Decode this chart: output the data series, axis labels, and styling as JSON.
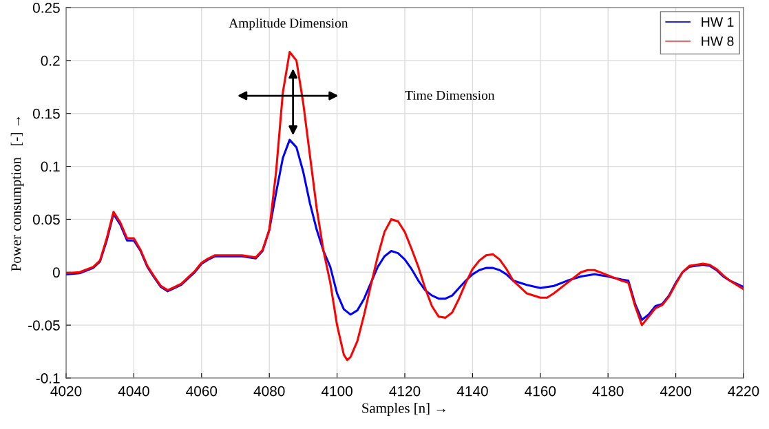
{
  "chart_data": {
    "type": "line",
    "xlabel": "Samples [n] →",
    "ylabel": "Power consumption   [-] →",
    "annotations": [
      "Amplitude Dimension",
      "Time Dimension"
    ],
    "xlim": [
      4020,
      4220
    ],
    "xticks": [
      4020,
      4040,
      4060,
      4080,
      4100,
      4120,
      4140,
      4160,
      4180,
      4200,
      4220
    ],
    "ylim": [
      -0.1,
      0.25
    ],
    "yticks": [
      -0.1,
      -0.05,
      0,
      0.05,
      0.1,
      0.15,
      0.2,
      0.25
    ],
    "grid": true,
    "legend": "top right",
    "marker": "none",
    "line_style": "solid",
    "series": [
      {
        "name": "HW 1",
        "color": "#0000ff",
        "x": [
          4020,
          4024,
          4028,
          4030,
          4032,
          4034,
          4036,
          4038,
          4040,
          4042,
          4044,
          4046,
          4048,
          4050,
          4052,
          4054,
          4056,
          4058,
          4060,
          4062,
          4064,
          4068,
          4072,
          4074,
          4076,
          4078,
          4080,
          4082,
          4084,
          4086,
          4088,
          4090,
          4092,
          4094,
          4096,
          4098,
          4100,
          4102,
          4104,
          4106,
          4108,
          4110,
          4112,
          4114,
          4116,
          4118,
          4120,
          4122,
          4124,
          4126,
          4128,
          4130,
          4132,
          4134,
          4136,
          4138,
          4140,
          4142,
          4144,
          4146,
          4148,
          4150,
          4152,
          4156,
          4160,
          4164,
          4168,
          4172,
          4176,
          4180,
          4184,
          4186,
          4188,
          4190,
          4192,
          4194,
          4196,
          4198,
          4200,
          4202,
          4204,
          4206,
          4208,
          4210,
          4212,
          4214,
          4216,
          4220
        ],
        "values": [
          -0.002,
          -0.001,
          0.004,
          0.01,
          0.03,
          0.055,
          0.045,
          0.03,
          0.03,
          0.02,
          0.005,
          -0.005,
          -0.014,
          -0.018,
          -0.015,
          -0.012,
          -0.006,
          0.0,
          0.008,
          0.012,
          0.015,
          0.015,
          0.015,
          0.014,
          0.013,
          0.02,
          0.04,
          0.075,
          0.108,
          0.125,
          0.118,
          0.095,
          0.065,
          0.04,
          0.02,
          0.005,
          -0.02,
          -0.035,
          -0.04,
          -0.036,
          -0.025,
          -0.01,
          0.005,
          0.015,
          0.02,
          0.018,
          0.012,
          0.003,
          -0.008,
          -0.017,
          -0.022,
          -0.025,
          -0.025,
          -0.022,
          -0.015,
          -0.008,
          -0.002,
          0.002,
          0.004,
          0.004,
          0.002,
          -0.002,
          -0.008,
          -0.012,
          -0.015,
          -0.013,
          -0.008,
          -0.004,
          -0.002,
          -0.004,
          -0.007,
          -0.008,
          -0.03,
          -0.045,
          -0.04,
          -0.032,
          -0.03,
          -0.022,
          -0.01,
          0.0,
          0.005,
          0.006,
          0.007,
          0.006,
          0.002,
          -0.004,
          -0.008,
          -0.014
        ]
      },
      {
        "name": "HW 8",
        "color": "#ff0000",
        "x": [
          4020,
          4024,
          4028,
          4030,
          4032,
          4034,
          4036,
          4038,
          4040,
          4042,
          4044,
          4046,
          4048,
          4050,
          4052,
          4054,
          4056,
          4058,
          4060,
          4062,
          4064,
          4068,
          4072,
          4074,
          4076,
          4078,
          4080,
          4082,
          4084,
          4086,
          4088,
          4090,
          4092,
          4094,
          4096,
          4098,
          4100,
          4102,
          4103,
          4104,
          4106,
          4108,
          4110,
          4112,
          4114,
          4116,
          4118,
          4120,
          4122,
          4124,
          4126,
          4128,
          4130,
          4132,
          4134,
          4136,
          4138,
          4140,
          4142,
          4144,
          4146,
          4148,
          4150,
          4152,
          4156,
          4160,
          4162,
          4164,
          4168,
          4172,
          4174,
          4176,
          4180,
          4184,
          4186,
          4188,
          4190,
          4192,
          4194,
          4196,
          4198,
          4200,
          4202,
          4204,
          4206,
          4208,
          4210,
          4212,
          4214,
          4216,
          4220
        ],
        "values": [
          -0.001,
          0.0,
          0.005,
          0.011,
          0.032,
          0.057,
          0.047,
          0.032,
          0.032,
          0.021,
          0.006,
          -0.004,
          -0.013,
          -0.017,
          -0.014,
          -0.011,
          -0.005,
          0.001,
          0.009,
          0.013,
          0.016,
          0.016,
          0.016,
          0.015,
          0.014,
          0.021,
          0.04,
          0.095,
          0.17,
          0.208,
          0.2,
          0.16,
          0.11,
          0.06,
          0.02,
          -0.01,
          -0.05,
          -0.078,
          -0.083,
          -0.08,
          -0.065,
          -0.04,
          -0.012,
          0.015,
          0.038,
          0.05,
          0.048,
          0.038,
          0.022,
          0.005,
          -0.015,
          -0.032,
          -0.042,
          -0.043,
          -0.038,
          -0.025,
          -0.01,
          0.003,
          0.011,
          0.016,
          0.017,
          0.012,
          0.003,
          -0.008,
          -0.02,
          -0.024,
          -0.024,
          -0.02,
          -0.01,
          0.0,
          0.002,
          0.002,
          -0.003,
          -0.008,
          -0.01,
          -0.032,
          -0.05,
          -0.042,
          -0.034,
          -0.031,
          -0.023,
          -0.011,
          0.0,
          0.006,
          0.007,
          0.008,
          0.007,
          0.003,
          -0.003,
          -0.008,
          -0.016
        ]
      }
    ]
  }
}
